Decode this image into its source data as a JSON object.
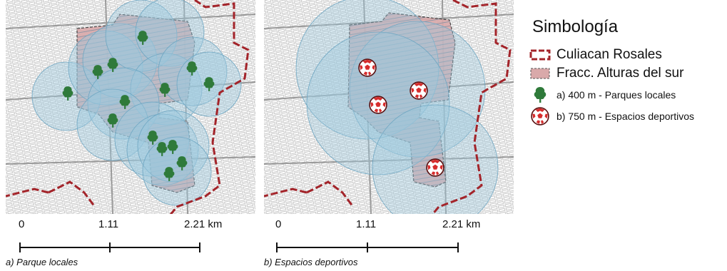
{
  "panels": [
    {
      "caption": "a) Parque locales",
      "scale_labels": [
        "0",
        "1.11",
        "2.21 km"
      ]
    },
    {
      "caption": "b) Espacios deportivos",
      "scale_labels": [
        "0",
        "1.11",
        "2.21 km"
      ]
    }
  ],
  "legend": {
    "title": "Simbología",
    "items": [
      {
        "label": "Culiacan Rosales",
        "icon": "dashed-red-boundary"
      },
      {
        "label": "Fracc. Alturas del sur",
        "icon": "pink-area"
      },
      {
        "label": "a)  400 m - Parques locales",
        "icon": "tree-icon"
      },
      {
        "label": "b) 750 m - Espacios deportivos",
        "icon": "soccer-ball-icon"
      }
    ]
  },
  "colors": {
    "boundary": "#a3242a",
    "fracc_fill": "#d9a9aa",
    "buffer_fill": "#9cc9dd",
    "tree": "#2f7a3a",
    "ball": "#d62d2d"
  }
}
